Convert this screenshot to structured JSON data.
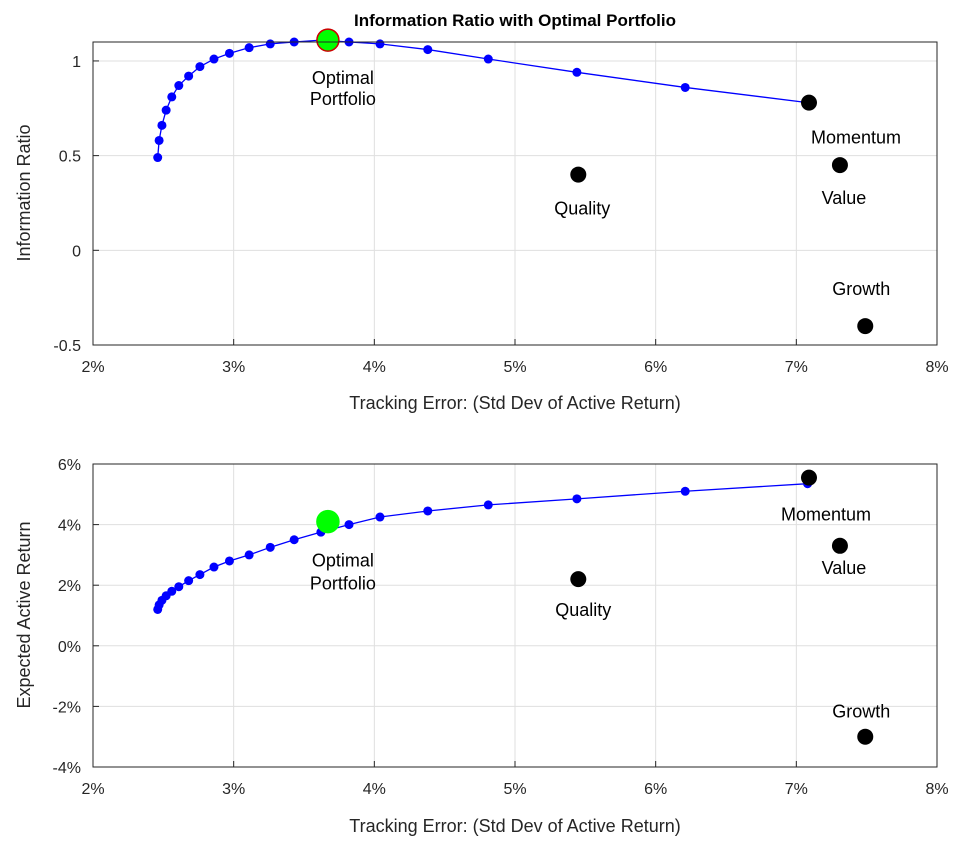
{
  "chart_data": [
    {
      "type": "scatter",
      "title": "Information Ratio with Optimal Portfolio",
      "xlabel": "Tracking Error: (Std Dev of Active Return)",
      "ylabel": "Information Ratio",
      "xlim": [
        0.02,
        0.08
      ],
      "ylim": [
        -0.5,
        1.1
      ],
      "xticks": [
        0.02,
        0.03,
        0.04,
        0.05,
        0.06,
        0.07,
        0.08
      ],
      "xtick_labels": [
        "2%",
        "3%",
        "4%",
        "5%",
        "6%",
        "7%",
        "8%"
      ],
      "yticks": [
        -0.5,
        0,
        0.5,
        1
      ],
      "ytick_labels": [
        "-0.5",
        "0",
        "0.5",
        "1"
      ],
      "grid": true,
      "frontier": {
        "color": "#0000ff",
        "x": [
          0.0246,
          0.0247,
          0.0249,
          0.0252,
          0.0256,
          0.0261,
          0.0268,
          0.0276,
          0.0286,
          0.0297,
          0.0311,
          0.0326,
          0.0343,
          0.0362,
          0.0382,
          0.0404,
          0.0438,
          0.0481,
          0.0544,
          0.0621,
          0.0708
        ],
        "y": [
          0.49,
          0.58,
          0.66,
          0.74,
          0.81,
          0.87,
          0.92,
          0.97,
          1.01,
          1.04,
          1.07,
          1.09,
          1.1,
          1.11,
          1.1,
          1.09,
          1.06,
          1.01,
          0.94,
          0.86,
          0.78
        ]
      },
      "optimal": {
        "x": 0.0367,
        "y": 1.11,
        "label": [
          "Optimal",
          "Portfolio"
        ],
        "fill": "#00ff00",
        "edge": "#cc0000"
      },
      "assets": [
        {
          "name": "Momentum",
          "x": 0.0709,
          "y": 0.78
        },
        {
          "name": "Value",
          "x": 0.0731,
          "y": 0.45
        },
        {
          "name": "Quality",
          "x": 0.0545,
          "y": 0.4
        },
        {
          "name": "Growth",
          "x": 0.0749,
          "y": -0.4
        }
      ]
    },
    {
      "type": "scatter",
      "title": "",
      "xlabel": "Tracking Error: (Std Dev of Active Return)",
      "ylabel": "Expected Active Return",
      "xlim": [
        0.02,
        0.08
      ],
      "ylim": [
        -0.04,
        0.06
      ],
      "xticks": [
        0.02,
        0.03,
        0.04,
        0.05,
        0.06,
        0.07,
        0.08
      ],
      "xtick_labels": [
        "2%",
        "3%",
        "4%",
        "5%",
        "6%",
        "7%",
        "8%"
      ],
      "yticks": [
        -0.04,
        -0.02,
        0,
        0.02,
        0.04,
        0.06
      ],
      "ytick_labels": [
        "-4%",
        "-2%",
        "0%",
        "2%",
        "4%",
        "6%"
      ],
      "grid": true,
      "frontier": {
        "color": "#0000ff",
        "x": [
          0.0246,
          0.0247,
          0.0249,
          0.0252,
          0.0256,
          0.0261,
          0.0268,
          0.0276,
          0.0286,
          0.0297,
          0.0311,
          0.0326,
          0.0343,
          0.0362,
          0.0382,
          0.0404,
          0.0438,
          0.0481,
          0.0544,
          0.0621,
          0.0708
        ],
        "y": [
          0.012,
          0.0135,
          0.015,
          0.0165,
          0.018,
          0.0195,
          0.0215,
          0.0235,
          0.026,
          0.028,
          0.03,
          0.0325,
          0.035,
          0.0375,
          0.04,
          0.0425,
          0.0445,
          0.0465,
          0.0485,
          0.051,
          0.0535
        ]
      },
      "optimal": {
        "x": 0.0367,
        "y": 0.041,
        "label": [
          "Optimal",
          "Portfolio"
        ],
        "fill": "#00ff00",
        "edge": "#00ff00"
      },
      "assets": [
        {
          "name": "Momentum",
          "x": 0.0709,
          "y": 0.0555
        },
        {
          "name": "Value",
          "x": 0.0731,
          "y": 0.033
        },
        {
          "name": "Quality",
          "x": 0.0545,
          "y": 0.022
        },
        {
          "name": "Growth",
          "x": 0.0749,
          "y": -0.03
        }
      ]
    }
  ]
}
